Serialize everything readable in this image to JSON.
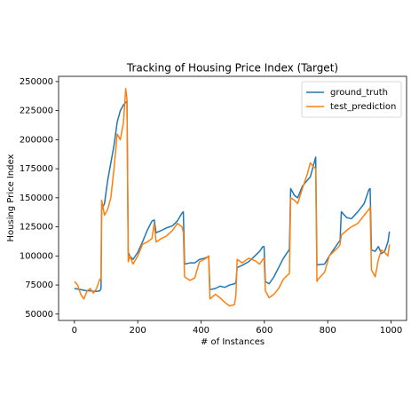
{
  "chart_data": {
    "type": "line",
    "title": "Tracking of Housing Price Index (Target)",
    "x_label": "# of Instances",
    "y_label": "Housing Price Index",
    "legend": "upper right",
    "grid": false,
    "xlim": [
      -50,
      1049
    ],
    "ylim": [
      44500,
      254500
    ],
    "xticks": [
      0,
      200,
      400,
      600,
      800,
      1000
    ],
    "yticks": [
      50000,
      75000,
      100000,
      125000,
      150000,
      175000,
      200000,
      225000,
      250000
    ],
    "x": [
      0,
      10,
      20,
      30,
      40,
      50,
      60,
      70,
      80,
      84,
      86,
      95,
      105,
      115,
      125,
      135,
      145,
      155,
      162,
      166,
      170,
      175,
      185,
      200,
      215,
      230,
      245,
      252,
      258,
      275,
      290,
      310,
      325,
      340,
      344,
      348,
      365,
      380,
      395,
      410,
      420,
      424,
      428,
      445,
      460,
      475,
      490,
      505,
      510,
      514,
      530,
      550,
      570,
      585,
      595,
      599,
      603,
      615,
      630,
      645,
      660,
      675,
      679,
      683,
      695,
      705,
      720,
      735,
      745,
      755,
      762,
      766,
      770,
      790,
      805,
      820,
      835,
      839,
      843,
      860,
      875,
      895,
      915,
      930,
      934,
      938,
      950,
      960,
      970,
      980,
      990,
      995
    ],
    "series": [
      {
        "name": "ground_truth",
        "color": "#1f77b4",
        "values": [
          72000,
          71500,
          71000,
          70500,
          70000,
          70000,
          69500,
          69500,
          70000,
          72000,
          140000,
          145000,
          165000,
          180000,
          195000,
          215000,
          225000,
          230000,
          232000,
          233000,
          103000,
          100000,
          97000,
          103000,
          112000,
          122000,
          130000,
          131000,
          120000,
          122000,
          124000,
          126000,
          130000,
          137000,
          138000,
          93000,
          94000,
          94000,
          97000,
          98000,
          99000,
          100000,
          71000,
          72000,
          74000,
          73000,
          75000,
          76000,
          77000,
          90000,
          92000,
          95000,
          100000,
          104000,
          108000,
          108000,
          78000,
          76000,
          82000,
          90000,
          98000,
          104000,
          106000,
          158000,
          152000,
          150000,
          160000,
          165000,
          168000,
          178000,
          185000,
          92000,
          92500,
          93000,
          100000,
          106000,
          112000,
          113000,
          138000,
          133000,
          132000,
          138000,
          145000,
          157000,
          158000,
          105000,
          104000,
          108000,
          102000,
          104000,
          112000,
          121000
        ]
      },
      {
        "name": "test_prediction",
        "color": "#ff7f0e",
        "values": [
          78000,
          75000,
          67000,
          63000,
          70000,
          72000,
          68000,
          72000,
          80000,
          80000,
          148000,
          135000,
          140000,
          150000,
          175000,
          205000,
          200000,
          215000,
          244000,
          235000,
          95000,
          100000,
          93000,
          100000,
          110000,
          112000,
          115000,
          128000,
          112000,
          115000,
          117000,
          122000,
          128000,
          125000,
          120000,
          82000,
          79000,
          81000,
          95000,
          97000,
          99000,
          100000,
          63000,
          67000,
          64000,
          60000,
          57000,
          58000,
          66000,
          97000,
          94000,
          98000,
          96000,
          93000,
          97000,
          98000,
          70000,
          64000,
          67000,
          72000,
          80000,
          84000,
          85000,
          150000,
          148000,
          145000,
          158000,
          170000,
          180000,
          177000,
          175000,
          78000,
          80000,
          86000,
          100000,
          104000,
          108000,
          110000,
          118000,
          122000,
          125000,
          128000,
          135000,
          140000,
          142000,
          88000,
          82000,
          97000,
          105000,
          103000,
          100000,
          110000
        ]
      }
    ]
  }
}
